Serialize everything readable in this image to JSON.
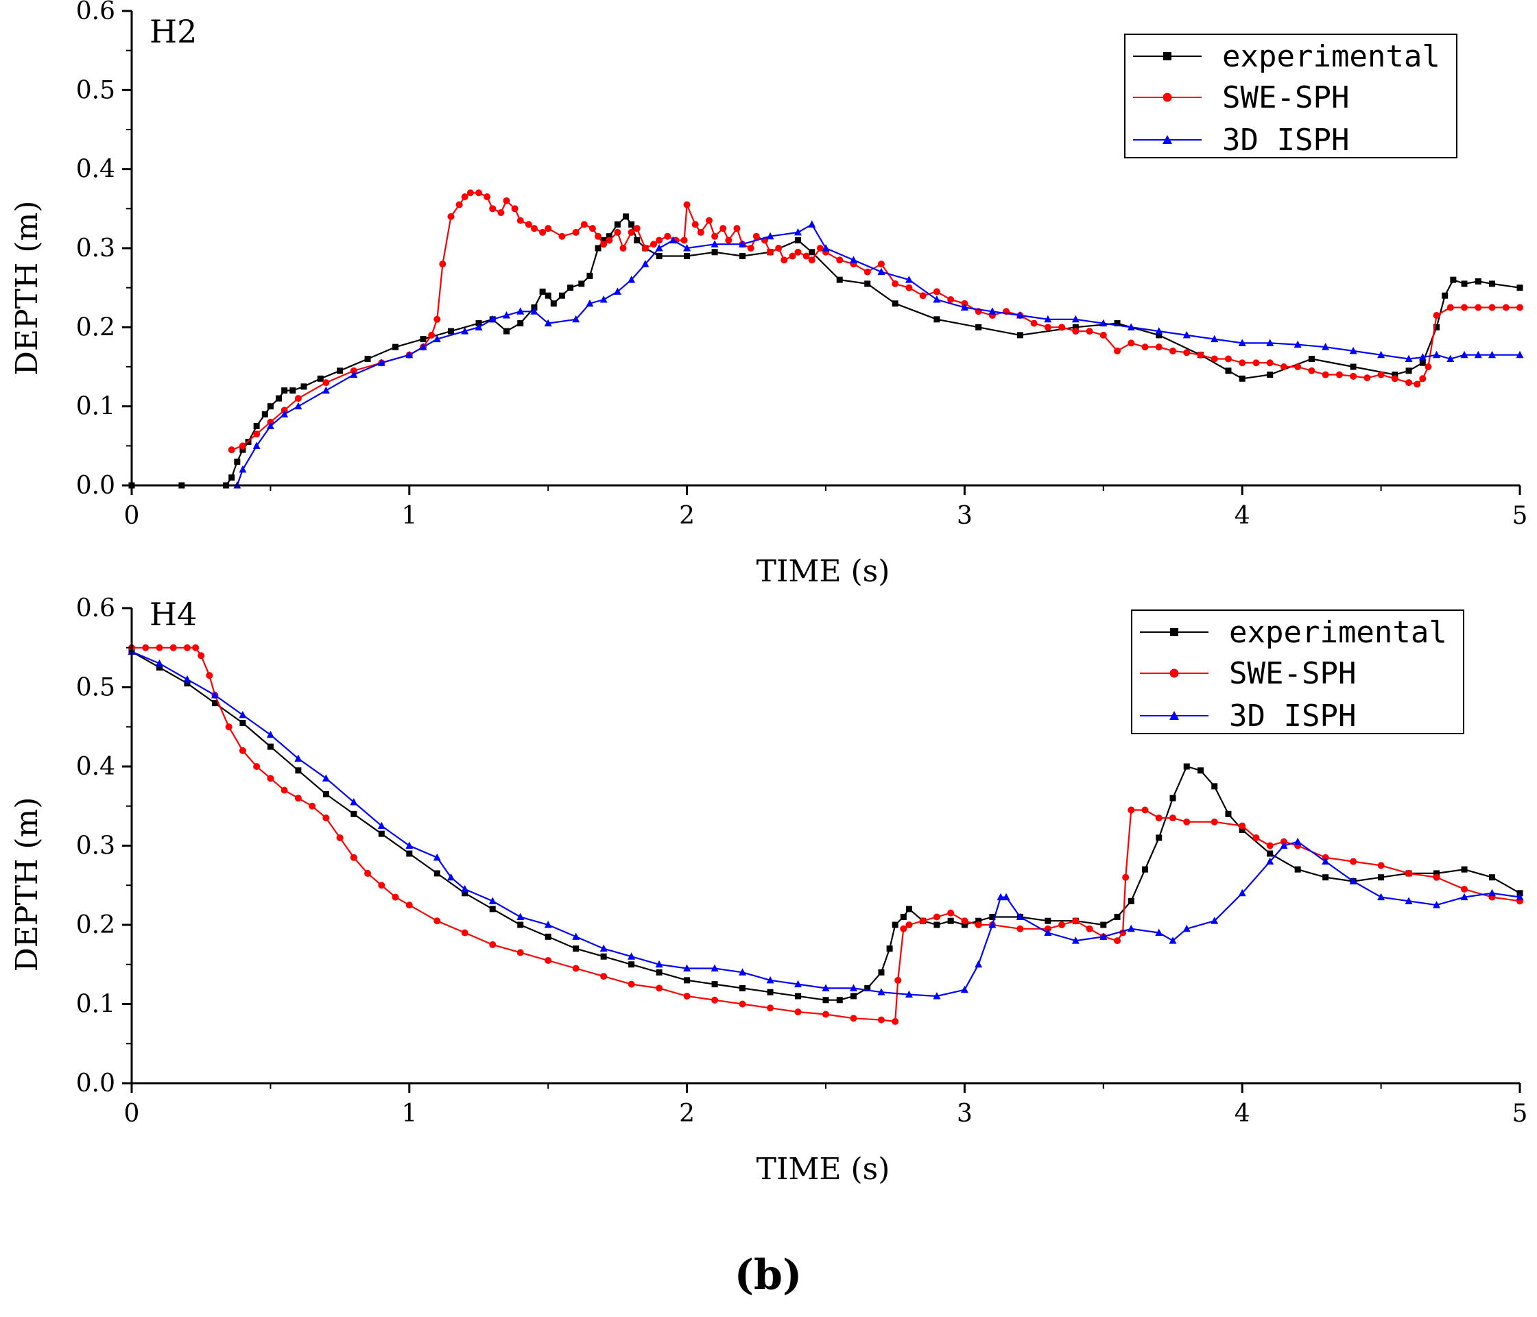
{
  "figure_label": "(b)",
  "chart_data": [
    {
      "type": "line",
      "panel_label": "H2",
      "xlabel": "TIME (s)",
      "ylabel": "DEPTH (m)",
      "xlim": [
        0,
        5
      ],
      "ylim": [
        0,
        0.6
      ],
      "xticks": [
        0,
        1,
        2,
        3,
        4,
        5
      ],
      "xtick_labels": [
        "0",
        "1",
        "2",
        "3",
        "4",
        "5"
      ],
      "yticks": [
        0,
        0.1,
        0.2,
        0.3,
        0.4,
        0.5,
        0.6
      ],
      "ytick_labels": [
        "0.0",
        "0.1",
        "0.2",
        "0.3",
        "0.4",
        "0.5",
        "0.6"
      ],
      "legend_position": "top-right",
      "series": [
        {
          "name": "experimental",
          "color": "#000000",
          "marker": "square",
          "x": [
            0,
            0.18,
            0.34,
            0.36,
            0.38,
            0.4,
            0.42,
            0.45,
            0.48,
            0.5,
            0.53,
            0.55,
            0.58,
            0.62,
            0.68,
            0.75,
            0.85,
            0.95,
            1.05,
            1.15,
            1.25,
            1.3,
            1.35,
            1.4,
            1.45,
            1.48,
            1.5,
            1.52,
            1.55,
            1.58,
            1.62,
            1.65,
            1.68,
            1.7,
            1.72,
            1.75,
            1.78,
            1.8,
            1.82,
            1.85,
            1.9,
            2.0,
            2.1,
            2.2,
            2.3,
            2.4,
            2.45,
            2.55,
            2.65,
            2.75,
            2.9,
            3.05,
            3.2,
            3.4,
            3.55,
            3.7,
            3.85,
            3.95,
            4.0,
            4.1,
            4.25,
            4.4,
            4.55,
            4.6,
            4.65,
            4.7,
            4.73,
            4.76,
            4.8,
            4.85,
            4.9,
            5.0
          ],
          "values": [
            0,
            0,
            0,
            0.01,
            0.03,
            0.045,
            0.055,
            0.075,
            0.09,
            0.1,
            0.11,
            0.12,
            0.12,
            0.125,
            0.135,
            0.145,
            0.16,
            0.175,
            0.185,
            0.195,
            0.205,
            0.21,
            0.195,
            0.205,
            0.225,
            0.245,
            0.24,
            0.23,
            0.24,
            0.25,
            0.255,
            0.265,
            0.3,
            0.31,
            0.315,
            0.33,
            0.34,
            0.33,
            0.31,
            0.3,
            0.29,
            0.29,
            0.295,
            0.29,
            0.295,
            0.31,
            0.295,
            0.26,
            0.255,
            0.23,
            0.21,
            0.2,
            0.19,
            0.2,
            0.205,
            0.19,
            0.165,
            0.145,
            0.135,
            0.14,
            0.16,
            0.15,
            0.14,
            0.145,
            0.155,
            0.2,
            0.24,
            0.26,
            0.255,
            0.258,
            0.255,
            0.25
          ]
        },
        {
          "name": "SWE-SPH",
          "color": "#ff0000",
          "marker": "circle",
          "x": [
            0.36,
            0.4,
            0.45,
            0.5,
            0.55,
            0.6,
            0.7,
            0.8,
            0.9,
            1.0,
            1.05,
            1.08,
            1.1,
            1.12,
            1.15,
            1.18,
            1.2,
            1.22,
            1.25,
            1.28,
            1.3,
            1.33,
            1.35,
            1.38,
            1.4,
            1.43,
            1.45,
            1.48,
            1.5,
            1.55,
            1.6,
            1.63,
            1.66,
            1.68,
            1.7,
            1.72,
            1.75,
            1.77,
            1.8,
            1.82,
            1.85,
            1.88,
            1.9,
            1.93,
            1.96,
            1.99,
            2.0,
            2.03,
            2.05,
            2.08,
            2.1,
            2.13,
            2.15,
            2.18,
            2.2,
            2.23,
            2.25,
            2.28,
            2.3,
            2.33,
            2.35,
            2.38,
            2.4,
            2.43,
            2.45,
            2.48,
            2.5,
            2.55,
            2.6,
            2.65,
            2.7,
            2.75,
            2.8,
            2.85,
            2.9,
            2.95,
            3.0,
            3.05,
            3.1,
            3.15,
            3.2,
            3.25,
            3.3,
            3.35,
            3.4,
            3.45,
            3.5,
            3.55,
            3.6,
            3.65,
            3.7,
            3.75,
            3.8,
            3.85,
            3.9,
            3.95,
            4.0,
            4.05,
            4.1,
            4.15,
            4.2,
            4.25,
            4.3,
            4.35,
            4.4,
            4.45,
            4.5,
            4.55,
            4.6,
            4.63,
            4.65,
            4.67,
            4.7,
            4.75,
            4.8,
            4.85,
            4.9,
            4.95,
            5.0
          ],
          "values": [
            0.045,
            0.05,
            0.065,
            0.08,
            0.095,
            0.11,
            0.13,
            0.145,
            0.155,
            0.165,
            0.175,
            0.19,
            0.21,
            0.28,
            0.34,
            0.355,
            0.365,
            0.37,
            0.37,
            0.365,
            0.35,
            0.345,
            0.36,
            0.35,
            0.335,
            0.33,
            0.325,
            0.32,
            0.325,
            0.315,
            0.32,
            0.33,
            0.325,
            0.315,
            0.305,
            0.31,
            0.32,
            0.3,
            0.32,
            0.325,
            0.3,
            0.305,
            0.31,
            0.315,
            0.31,
            0.31,
            0.355,
            0.33,
            0.32,
            0.335,
            0.315,
            0.325,
            0.31,
            0.325,
            0.305,
            0.3,
            0.315,
            0.31,
            0.295,
            0.3,
            0.285,
            0.29,
            0.295,
            0.29,
            0.285,
            0.3,
            0.295,
            0.285,
            0.28,
            0.27,
            0.28,
            0.255,
            0.25,
            0.24,
            0.245,
            0.235,
            0.23,
            0.22,
            0.215,
            0.22,
            0.215,
            0.205,
            0.2,
            0.2,
            0.195,
            0.195,
            0.19,
            0.17,
            0.18,
            0.175,
            0.175,
            0.17,
            0.168,
            0.165,
            0.16,
            0.16,
            0.155,
            0.155,
            0.155,
            0.15,
            0.15,
            0.145,
            0.14,
            0.14,
            0.138,
            0.136,
            0.14,
            0.135,
            0.13,
            0.128,
            0.135,
            0.15,
            0.215,
            0.225,
            0.225,
            0.225,
            0.225,
            0.225,
            0.225
          ]
        },
        {
          "name": "3D ISPH",
          "color": "#0000ff",
          "marker": "triangle",
          "x": [
            0.38,
            0.4,
            0.45,
            0.5,
            0.55,
            0.6,
            0.7,
            0.8,
            0.9,
            1.0,
            1.05,
            1.1,
            1.2,
            1.25,
            1.3,
            1.35,
            1.4,
            1.45,
            1.5,
            1.6,
            1.65,
            1.7,
            1.75,
            1.8,
            1.85,
            1.9,
            1.95,
            2.0,
            2.1,
            2.2,
            2.3,
            2.4,
            2.45,
            2.5,
            2.6,
            2.7,
            2.8,
            2.9,
            3.0,
            3.1,
            3.2,
            3.3,
            3.4,
            3.5,
            3.6,
            3.7,
            3.8,
            3.9,
            4.0,
            4.1,
            4.2,
            4.3,
            4.4,
            4.5,
            4.6,
            4.65,
            4.7,
            4.75,
            4.8,
            4.85,
            4.9,
            5.0
          ],
          "values": [
            0,
            0.02,
            0.05,
            0.075,
            0.09,
            0.1,
            0.12,
            0.14,
            0.155,
            0.165,
            0.175,
            0.185,
            0.195,
            0.2,
            0.21,
            0.215,
            0.22,
            0.22,
            0.205,
            0.21,
            0.23,
            0.235,
            0.245,
            0.26,
            0.28,
            0.3,
            0.31,
            0.3,
            0.305,
            0.305,
            0.315,
            0.32,
            0.33,
            0.3,
            0.285,
            0.27,
            0.26,
            0.235,
            0.225,
            0.22,
            0.215,
            0.21,
            0.21,
            0.205,
            0.2,
            0.195,
            0.19,
            0.185,
            0.18,
            0.18,
            0.178,
            0.175,
            0.17,
            0.165,
            0.16,
            0.162,
            0.165,
            0.16,
            0.165,
            0.165,
            0.165,
            0.165
          ]
        }
      ]
    },
    {
      "type": "line",
      "panel_label": "H4",
      "xlabel": "TIME (s)",
      "ylabel": "DEPTH (m)",
      "xlim": [
        0,
        5
      ],
      "ylim": [
        0,
        0.6
      ],
      "xticks": [
        0,
        1,
        2,
        3,
        4,
        5
      ],
      "xtick_labels": [
        "0",
        "1",
        "2",
        "3",
        "4",
        "5"
      ],
      "yticks": [
        0,
        0.1,
        0.2,
        0.3,
        0.4,
        0.5,
        0.6
      ],
      "ytick_labels": [
        "0.0",
        "0.1",
        "0.2",
        "0.3",
        "0.4",
        "0.5",
        "0.6"
      ],
      "legend_position": "top-right",
      "series": [
        {
          "name": "experimental",
          "color": "#000000",
          "marker": "square",
          "x": [
            0,
            0.1,
            0.2,
            0.3,
            0.4,
            0.5,
            0.6,
            0.7,
            0.8,
            0.9,
            1.0,
            1.1,
            1.2,
            1.3,
            1.4,
            1.5,
            1.6,
            1.7,
            1.8,
            1.9,
            2.0,
            2.1,
            2.2,
            2.3,
            2.4,
            2.5,
            2.55,
            2.6,
            2.65,
            2.7,
            2.73,
            2.75,
            2.78,
            2.8,
            2.85,
            2.9,
            2.95,
            3.0,
            3.05,
            3.1,
            3.2,
            3.3,
            3.4,
            3.5,
            3.55,
            3.6,
            3.65,
            3.7,
            3.75,
            3.8,
            3.85,
            3.9,
            3.95,
            4.0,
            4.1,
            4.2,
            4.3,
            4.4,
            4.5,
            4.6,
            4.7,
            4.8,
            4.9,
            5.0
          ],
          "values": [
            0.545,
            0.525,
            0.505,
            0.48,
            0.455,
            0.425,
            0.395,
            0.365,
            0.34,
            0.315,
            0.29,
            0.265,
            0.24,
            0.22,
            0.2,
            0.185,
            0.17,
            0.16,
            0.15,
            0.14,
            0.13,
            0.125,
            0.12,
            0.115,
            0.11,
            0.105,
            0.105,
            0.11,
            0.12,
            0.14,
            0.17,
            0.2,
            0.21,
            0.22,
            0.205,
            0.2,
            0.205,
            0.2,
            0.205,
            0.21,
            0.21,
            0.205,
            0.205,
            0.2,
            0.21,
            0.23,
            0.27,
            0.31,
            0.36,
            0.4,
            0.395,
            0.375,
            0.34,
            0.32,
            0.29,
            0.27,
            0.26,
            0.255,
            0.26,
            0.265,
            0.265,
            0.27,
            0.26,
            0.24
          ]
        },
        {
          "name": "SWE-SPH",
          "color": "#ff0000",
          "marker": "circle",
          "x": [
            0,
            0.05,
            0.1,
            0.15,
            0.2,
            0.23,
            0.25,
            0.28,
            0.3,
            0.35,
            0.4,
            0.45,
            0.5,
            0.55,
            0.6,
            0.65,
            0.7,
            0.75,
            0.8,
            0.85,
            0.9,
            0.95,
            1.0,
            1.1,
            1.2,
            1.3,
            1.4,
            1.5,
            1.6,
            1.7,
            1.8,
            1.9,
            2.0,
            2.1,
            2.2,
            2.3,
            2.4,
            2.5,
            2.6,
            2.7,
            2.75,
            2.76,
            2.78,
            2.8,
            2.85,
            2.9,
            2.95,
            3.0,
            3.05,
            3.1,
            3.2,
            3.3,
            3.35,
            3.4,
            3.45,
            3.5,
            3.55,
            3.57,
            3.58,
            3.6,
            3.65,
            3.7,
            3.75,
            3.8,
            3.9,
            4.0,
            4.05,
            4.1,
            4.15,
            4.2,
            4.3,
            4.4,
            4.5,
            4.6,
            4.7,
            4.8,
            4.9,
            5.0
          ],
          "values": [
            0.55,
            0.55,
            0.55,
            0.55,
            0.55,
            0.55,
            0.54,
            0.515,
            0.49,
            0.45,
            0.42,
            0.4,
            0.385,
            0.37,
            0.36,
            0.35,
            0.335,
            0.31,
            0.285,
            0.265,
            0.25,
            0.235,
            0.225,
            0.205,
            0.19,
            0.175,
            0.165,
            0.155,
            0.145,
            0.135,
            0.125,
            0.12,
            0.11,
            0.105,
            0.1,
            0.095,
            0.09,
            0.087,
            0.082,
            0.08,
            0.078,
            0.13,
            0.195,
            0.2,
            0.205,
            0.21,
            0.215,
            0.205,
            0.2,
            0.2,
            0.195,
            0.195,
            0.2,
            0.205,
            0.195,
            0.185,
            0.18,
            0.19,
            0.26,
            0.345,
            0.345,
            0.335,
            0.335,
            0.33,
            0.33,
            0.325,
            0.31,
            0.3,
            0.305,
            0.3,
            0.285,
            0.28,
            0.275,
            0.265,
            0.26,
            0.245,
            0.235,
            0.23
          ]
        },
        {
          "name": "3D ISPH",
          "color": "#0000ff",
          "marker": "triangle",
          "x": [
            0,
            0.1,
            0.2,
            0.3,
            0.4,
            0.5,
            0.6,
            0.7,
            0.8,
            0.9,
            1.0,
            1.1,
            1.15,
            1.2,
            1.3,
            1.4,
            1.5,
            1.6,
            1.7,
            1.8,
            1.9,
            2.0,
            2.1,
            2.2,
            2.3,
            2.4,
            2.5,
            2.6,
            2.7,
            2.8,
            2.9,
            3.0,
            3.05,
            3.1,
            3.13,
            3.15,
            3.2,
            3.3,
            3.4,
            3.5,
            3.6,
            3.7,
            3.75,
            3.8,
            3.9,
            4.0,
            4.1,
            4.15,
            4.2,
            4.3,
            4.4,
            4.5,
            4.6,
            4.7,
            4.8,
            4.9,
            5.0
          ],
          "values": [
            0.545,
            0.53,
            0.51,
            0.49,
            0.465,
            0.44,
            0.41,
            0.385,
            0.355,
            0.325,
            0.3,
            0.285,
            0.26,
            0.245,
            0.23,
            0.21,
            0.2,
            0.185,
            0.17,
            0.16,
            0.15,
            0.145,
            0.145,
            0.14,
            0.13,
            0.125,
            0.12,
            0.12,
            0.115,
            0.112,
            0.11,
            0.118,
            0.15,
            0.2,
            0.235,
            0.235,
            0.21,
            0.19,
            0.18,
            0.185,
            0.195,
            0.19,
            0.18,
            0.195,
            0.205,
            0.24,
            0.28,
            0.3,
            0.305,
            0.28,
            0.255,
            0.235,
            0.23,
            0.225,
            0.235,
            0.24,
            0.235
          ]
        }
      ]
    }
  ]
}
